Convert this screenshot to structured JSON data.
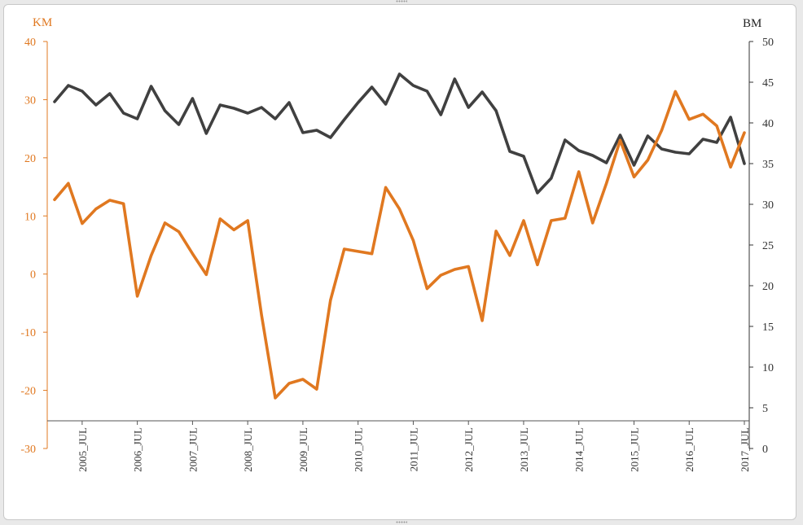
{
  "chart_data": {
    "type": "line",
    "left_axis": {
      "label": "KM",
      "ylim": [
        -30,
        40
      ],
      "ticks": [
        40,
        30,
        20,
        10,
        0,
        -10,
        -20,
        -30
      ],
      "color": "#e07820"
    },
    "right_axis": {
      "label": "BM",
      "ylim": [
        0,
        50
      ],
      "ticks": [
        50,
        45,
        40,
        35,
        30,
        25,
        20,
        15,
        10,
        5,
        0
      ],
      "color": "#333333"
    },
    "x_tick_labels": [
      "2005_JUL",
      "2006_JUL",
      "2007_JUL",
      "2008_JUL",
      "2009_JUL",
      "2010_JUL",
      "2011_JUL",
      "2012_JUL",
      "2013_JUL",
      "2014_JUL",
      "2015_JUL",
      "2016_JUL",
      "2017_JUL"
    ],
    "grid": false,
    "series": [
      {
        "axis": "left",
        "color": "#e07820",
        "values": [
          12.8,
          15.6,
          8.7,
          11.2,
          12.7,
          12.1,
          -3.8,
          3.2,
          8.8,
          7.3,
          3.5,
          -0.1,
          9.5,
          7.6,
          9.2,
          -7.0,
          -21.3,
          -18.8,
          -18.1,
          -19.8,
          -4.5,
          4.3,
          3.9,
          3.5,
          14.9,
          11.2,
          5.8,
          -2.5,
          -0.2,
          0.8,
          1.3,
          -8.0,
          7.4,
          3.2,
          9.2,
          1.6,
          9.2,
          9.6,
          17.6,
          8.8,
          15.6,
          23.0,
          16.7,
          19.6,
          24.7,
          31.4,
          26.6,
          27.5,
          25.5,
          18.4,
          24.3
        ]
      },
      {
        "axis": "right",
        "color": "#404040",
        "values": [
          42.6,
          44.6,
          43.9,
          42.2,
          43.6,
          41.2,
          40.5,
          44.5,
          41.5,
          39.8,
          43.0,
          38.7,
          42.2,
          41.8,
          41.2,
          41.9,
          40.5,
          42.5,
          38.8,
          39.1,
          38.2,
          40.4,
          42.5,
          44.4,
          42.3,
          46.0,
          44.6,
          43.9,
          41.0,
          45.4,
          41.9,
          43.8,
          41.5,
          36.5,
          35.9,
          31.4,
          33.2,
          37.9,
          36.6,
          36.0,
          35.1,
          38.5,
          34.8,
          38.4,
          36.8,
          36.4,
          36.2,
          38.0,
          37.6,
          40.7,
          35.0
        ]
      }
    ]
  }
}
